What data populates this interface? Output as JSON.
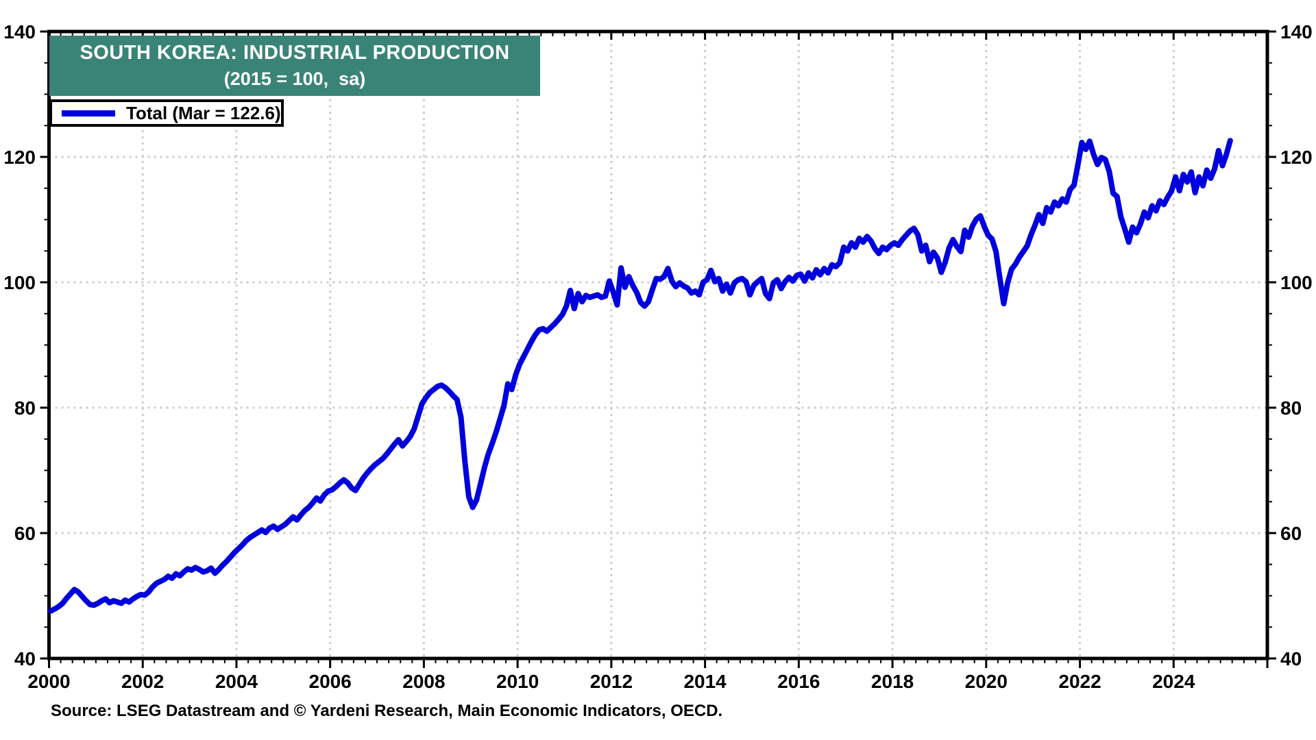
{
  "banner": {
    "title_line1": "SOUTH KOREA: INDUSTRIAL PRODUCTION",
    "title_line2": "(2015 = 100,  sa)",
    "bg_color": "#3A8477",
    "text_color": "#FFFFFF"
  },
  "legend": {
    "label": "Total (Mar = 122.6)",
    "line_color": "#0000DC"
  },
  "source_note": "Source: LSEG Datastream and © Yardeni Research, Main Economic Indicators, OECD.",
  "chart_data": {
    "type": "line",
    "title": "SOUTH KOREA: INDUSTRIAL PRODUCTION",
    "subtitle": "(2015 = 100, sa)",
    "legend_position": "top-left",
    "grid": {
      "show": true,
      "color": "#CDCDCD",
      "style": "dotted"
    },
    "line_color": "#0000DC",
    "frame_color": "#000000",
    "x_axis": {
      "min": 2000,
      "max": 2026,
      "major_tick_step_years": 2,
      "minor_tick_step_years": 0.25,
      "tick_labels": [
        "2000",
        "2002",
        "2004",
        "2006",
        "2008",
        "2010",
        "2012",
        "2014",
        "2016",
        "2018",
        "2020",
        "2022",
        "2024"
      ],
      "gridline_years": [
        2002,
        2004,
        2006,
        2008,
        2010,
        2012,
        2014,
        2016,
        2018,
        2020,
        2022,
        2024
      ]
    },
    "y_axis": {
      "min": 40,
      "max": 140,
      "major_ticks": [
        40,
        60,
        80,
        100,
        120,
        140
      ],
      "minor_tick_step": 5,
      "gridlines": [
        60,
        80,
        100,
        120
      ],
      "labels_both_sides": true
    },
    "series": [
      {
        "name": "Total",
        "last_point_label": "Mar = 122.6",
        "start_year": 2000,
        "start_month": 1,
        "frequency": "monthly",
        "values": [
          47.6,
          47.9,
          48.3,
          48.8,
          49.6,
          50.3,
          51.0,
          50.6,
          49.9,
          49.2,
          48.6,
          48.5,
          48.8,
          49.2,
          49.5,
          48.9,
          49.2,
          49.0,
          48.8,
          49.3,
          49.0,
          49.5,
          49.9,
          50.2,
          50.1,
          50.6,
          51.4,
          52.0,
          52.3,
          52.6,
          53.1,
          52.8,
          53.5,
          53.2,
          53.8,
          54.3,
          54.1,
          54.5,
          54.2,
          53.8,
          54.0,
          54.4,
          53.6,
          54.2,
          54.9,
          55.5,
          56.2,
          56.9,
          57.5,
          58.1,
          58.8,
          59.3,
          59.7,
          60.1,
          60.5,
          60.1,
          60.8,
          61.1,
          60.6,
          61.0,
          61.4,
          62.0,
          62.6,
          62.1,
          62.9,
          63.6,
          64.1,
          64.8,
          65.6,
          65.1,
          66.1,
          66.7,
          66.9,
          67.4,
          68.0,
          68.5,
          68.0,
          67.2,
          66.8,
          67.8,
          68.8,
          69.6,
          70.3,
          70.9,
          71.4,
          71.9,
          72.6,
          73.4,
          74.2,
          74.9,
          73.9,
          74.6,
          75.4,
          76.6,
          78.6,
          80.6,
          81.6,
          82.4,
          82.9,
          83.4,
          83.6,
          83.2,
          82.6,
          81.9,
          81.3,
          78.5,
          71.5,
          65.8,
          64.1,
          65.3,
          67.8,
          70.4,
          72.6,
          74.3,
          76.1,
          78.2,
          80.3,
          83.8,
          82.9,
          85.2,
          86.9,
          88.1,
          89.3,
          90.5,
          91.6,
          92.4,
          92.6,
          92.2,
          92.8,
          93.4,
          94.1,
          94.9,
          96.2,
          98.7,
          95.8,
          98.2,
          96.9,
          97.9,
          97.6,
          97.8,
          98.0,
          97.6,
          97.8,
          100.2,
          98.4,
          96.4,
          102.3,
          99.2,
          100.9,
          99.5,
          98.4,
          96.8,
          96.2,
          96.9,
          98.8,
          100.6,
          100.5,
          100.9,
          102.2,
          100.2,
          99.3,
          99.9,
          99.4,
          99.1,
          98.3,
          98.6,
          98.0,
          100.0,
          100.4,
          101.9,
          100.1,
          100.6,
          98.6,
          99.7,
          98.3,
          99.9,
          100.4,
          100.6,
          100.1,
          98.0,
          99.5,
          100.1,
          100.6,
          98.2,
          97.4,
          99.9,
          100.4,
          99.0,
          100.1,
          100.8,
          100.2,
          101.1,
          101.3,
          100.2,
          101.5,
          100.7,
          102.0,
          101.2,
          102.2,
          101.5,
          102.8,
          102.5,
          103.1,
          105.6,
          105.0,
          106.3,
          105.6,
          107.0,
          106.4,
          107.3,
          106.6,
          105.4,
          104.6,
          105.6,
          105.2,
          105.9,
          106.3,
          105.9,
          106.8,
          107.5,
          108.2,
          108.6,
          107.6,
          105.0,
          105.9,
          103.3,
          104.8,
          103.9,
          101.6,
          103.2,
          105.5,
          106.8,
          105.7,
          104.9,
          108.3,
          107.2,
          109.0,
          110.1,
          110.6,
          108.9,
          107.5,
          106.9,
          104.9,
          100.7,
          96.6,
          99.9,
          102.1,
          102.9,
          104.0,
          104.9,
          105.8,
          107.6,
          109.1,
          110.8,
          109.4,
          111.9,
          111.2,
          112.8,
          112.2,
          113.3,
          112.8,
          114.8,
          115.5,
          118.8,
          122.3,
          121.2,
          122.5,
          120.4,
          118.8,
          119.9,
          119.6,
          117.7,
          114.2,
          113.7,
          110.4,
          108.5,
          106.4,
          108.8,
          107.9,
          109.3,
          111.2,
          110.3,
          112.2,
          111.4,
          113.0,
          112.4,
          113.6,
          114.6,
          116.8,
          114.6,
          117.2,
          116.0,
          117.6,
          114.3,
          116.8,
          115.4,
          117.9,
          116.6,
          118.1,
          121.0,
          118.6,
          120.4,
          122.6
        ]
      }
    ]
  }
}
